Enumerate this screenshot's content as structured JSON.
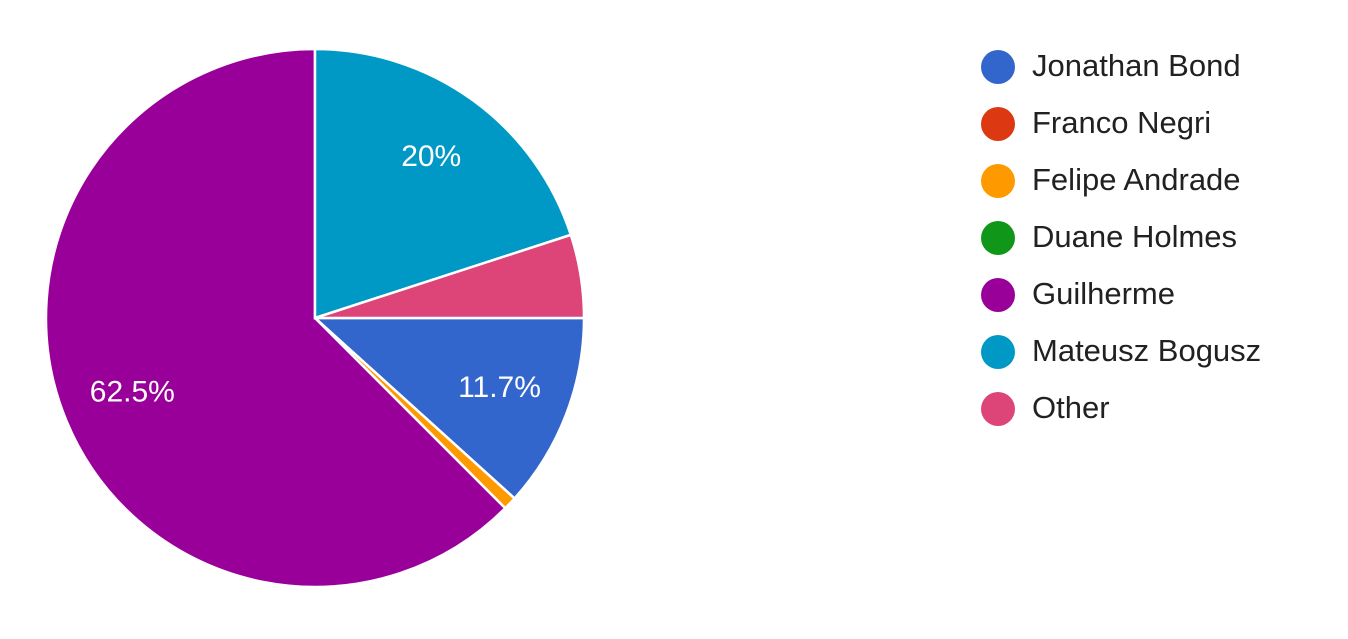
{
  "chart_data": {
    "type": "pie",
    "categories": [
      "Jonathan Bond",
      "Franco Negri",
      "Felipe Andrade",
      "Duane Holmes",
      "Guilherme",
      "Mateusz Bogusz",
      "Other"
    ],
    "values": [
      11.7,
      0,
      0.8,
      0,
      62.5,
      20,
      5
    ],
    "value_labels": [
      "11.7%",
      null,
      null,
      null,
      "62.5%",
      "20%",
      null
    ],
    "colors": [
      "#3366cc",
      "#dc3912",
      "#ff9900",
      "#109618",
      "#990099",
      "#0099c6",
      "#dd4477"
    ],
    "legend": "right"
  }
}
